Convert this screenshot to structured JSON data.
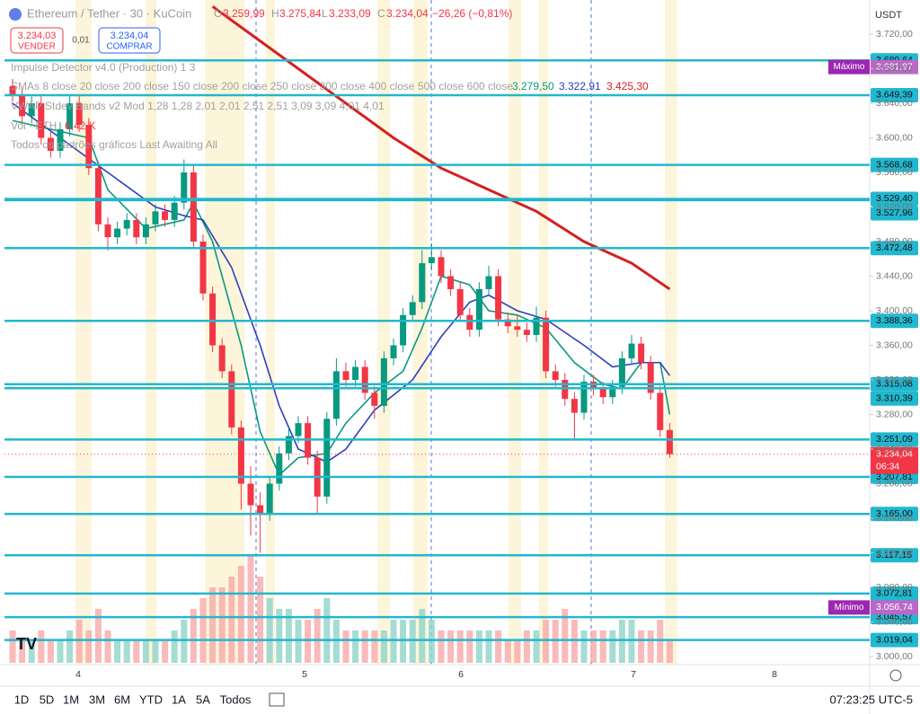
{
  "header": {
    "symbol": "Ethereum / Tether · 30 · KuCoin",
    "o_label": "O",
    "o": "3.259,99",
    "h_label": "H",
    "h": "3.275,84",
    "l_label": "L",
    "l": "3.233,09",
    "c_label": "C",
    "c": "3.234,04",
    "change": "−26,26 (−0,81%)"
  },
  "trade": {
    "sell_price": "3.234,03",
    "sell": "VENDER",
    "spread": "0,01",
    "buy_price": "3.234,04",
    "buy": "COMPRAR"
  },
  "indicators": {
    "impulse": "Impulse Detector v4.0 (Production) 1 3",
    "smas": "SMAs 8 close 20 close 200 close 150 close 200 close 250 close 300 close 400 close 500 close 600 close",
    "sma_values": [
      "3.279,50",
      "3.322,91",
      "3.425,30"
    ],
    "vwap": "VWAP Stdev Bands v2 Mod 1,28 1,28 2,01 2,01 2,51 2,51 3,09 3,09 4,01 4,01",
    "vol": "Vol · ETH",
    "vol_value": "6,42 K",
    "patterns": "Todos os padrões gráficos Last Awaiting All"
  },
  "chart_data": {
    "type": "candlestick",
    "currency": "USDT",
    "up_color": "#089981",
    "down_color": "#f23645",
    "ylim": [
      3000,
      3720
    ],
    "yticks": [
      {
        "value": 3720,
        "label": "3.720,00"
      },
      {
        "value": 3680,
        "label": "3.680,00"
      },
      {
        "value": 3640,
        "label": "3.640,00"
      },
      {
        "value": 3600,
        "label": "3.600,00"
      },
      {
        "value": 3560,
        "label": "3.560,00"
      },
      {
        "value": 3520,
        "label": "3.520,00"
      },
      {
        "value": 3480,
        "label": "3.480,00"
      },
      {
        "value": 3440,
        "label": "3.440,00"
      },
      {
        "value": 3400,
        "label": "3.400,00"
      },
      {
        "value": 3360,
        "label": "3.360,00"
      },
      {
        "value": 3320,
        "label": "3.320,00"
      },
      {
        "value": 3280,
        "label": "3.280,00"
      },
      {
        "value": 3240,
        "label": "3.240,00"
      },
      {
        "value": 3200,
        "label": "3.200,00"
      },
      {
        "value": 3160,
        "label": "3.160,00"
      },
      {
        "value": 3120,
        "label": "3.120,00"
      },
      {
        "value": 3080,
        "label": "3.080,00"
      },
      {
        "value": 3040,
        "label": "3.040,00"
      },
      {
        "value": 3000,
        "label": "3.000,00"
      }
    ],
    "xticks": [
      "4",
      "5",
      "6",
      "7",
      "8"
    ],
    "candles": [
      [
        3660,
        3668,
        3642,
        3650
      ],
      [
        3650,
        3658,
        3617,
        3625
      ],
      [
        3625,
        3648,
        3617,
        3640
      ],
      [
        3640,
        3648,
        3592,
        3600
      ],
      [
        3600,
        3608,
        3577,
        3585
      ],
      [
        3585,
        3618,
        3577,
        3610
      ],
      [
        3610,
        3650,
        3602,
        3640
      ],
      [
        3640,
        3648,
        3607,
        3615
      ],
      [
        3615,
        3623,
        3557,
        3565
      ],
      [
        3565,
        3573,
        3492,
        3500
      ],
      [
        3500,
        3508,
        3470,
        3485
      ],
      [
        3485,
        3503,
        3477,
        3495
      ],
      [
        3495,
        3513,
        3487,
        3505
      ],
      [
        3505,
        3513,
        3477,
        3485
      ],
      [
        3485,
        3508,
        3477,
        3500
      ],
      [
        3500,
        3523,
        3492,
        3515
      ],
      [
        3515,
        3523,
        3497,
        3505
      ],
      [
        3505,
        3533,
        3497,
        3525
      ],
      [
        3525,
        3575,
        3517,
        3560
      ],
      [
        3560,
        3568,
        3472,
        3480
      ],
      [
        3480,
        3488,
        3412,
        3420
      ],
      [
        3420,
        3428,
        3352,
        3360
      ],
      [
        3360,
        3368,
        3322,
        3330
      ],
      [
        3330,
        3338,
        3257,
        3265
      ],
      [
        3265,
        3273,
        3170,
        3200
      ],
      [
        3200,
        3220,
        3140,
        3175
      ],
      [
        3175,
        3190,
        3120,
        3165
      ],
      [
        3165,
        3208,
        3157,
        3200
      ],
      [
        3200,
        3243,
        3192,
        3235
      ],
      [
        3235,
        3263,
        3227,
        3255
      ],
      [
        3255,
        3278,
        3247,
        3270
      ],
      [
        3270,
        3278,
        3222,
        3230
      ],
      [
        3230,
        3238,
        3165,
        3185
      ],
      [
        3185,
        3283,
        3177,
        3275
      ],
      [
        3275,
        3345,
        3267,
        3330
      ],
      [
        3330,
        3340,
        3312,
        3320
      ],
      [
        3320,
        3343,
        3312,
        3335
      ],
      [
        3335,
        3343,
        3297,
        3305
      ],
      [
        3305,
        3313,
        3275,
        3290
      ],
      [
        3290,
        3353,
        3282,
        3345
      ],
      [
        3345,
        3368,
        3337,
        3360
      ],
      [
        3360,
        3403,
        3352,
        3395
      ],
      [
        3395,
        3418,
        3387,
        3410
      ],
      [
        3410,
        3470,
        3402,
        3455
      ],
      [
        3455,
        3478,
        3447,
        3462
      ],
      [
        3462,
        3470,
        3432,
        3440
      ],
      [
        3440,
        3448,
        3417,
        3425
      ],
      [
        3425,
        3433,
        3387,
        3395
      ],
      [
        3395,
        3403,
        3370,
        3378
      ],
      [
        3378,
        3433,
        3370,
        3425
      ],
      [
        3425,
        3452,
        3417,
        3440
      ],
      [
        3440,
        3448,
        3382,
        3390
      ],
      [
        3390,
        3398,
        3374,
        3382
      ],
      [
        3382,
        3395,
        3370,
        3378
      ],
      [
        3378,
        3386,
        3364,
        3372
      ],
      [
        3372,
        3405,
        3364,
        3392
      ],
      [
        3392,
        3400,
        3322,
        3330
      ],
      [
        3330,
        3338,
        3312,
        3320
      ],
      [
        3320,
        3328,
        3290,
        3298
      ],
      [
        3298,
        3306,
        3250,
        3282
      ],
      [
        3282,
        3326,
        3274,
        3318
      ],
      [
        3318,
        3326,
        3302,
        3310
      ],
      [
        3310,
        3318,
        3292,
        3300
      ],
      [
        3300,
        3320,
        3292,
        3312
      ],
      [
        3312,
        3353,
        3304,
        3345
      ],
      [
        3345,
        3372,
        3337,
        3362
      ],
      [
        3362,
        3370,
        3332,
        3340
      ],
      [
        3340,
        3348,
        3297,
        3305
      ],
      [
        3305,
        3313,
        3254,
        3262
      ],
      [
        3262,
        3270,
        3230,
        3234.04
      ]
    ],
    "volume_color_up": "#8fd3c8",
    "volume_color_down": "#f7a9a7",
    "volumes": [
      3,
      2,
      2,
      3,
      2,
      2,
      3,
      4,
      3,
      5,
      3,
      2,
      2,
      2,
      2,
      2,
      2,
      3,
      4,
      5,
      6,
      7,
      7,
      8,
      9,
      10,
      8,
      6,
      5,
      5,
      4,
      4,
      5,
      6,
      4,
      3,
      3,
      3,
      3,
      3,
      4,
      4,
      4,
      5,
      4,
      3,
      3,
      3,
      3,
      3,
      3,
      3,
      2,
      2,
      3,
      3,
      4,
      4,
      5,
      4,
      3,
      3,
      3,
      3,
      4,
      4,
      3,
      3,
      4,
      2
    ],
    "moving_averages": [
      {
        "color": "#089981",
        "x": [
          0,
          8,
          10,
          14,
          18,
          19,
          21,
          24,
          26,
          28,
          30,
          33,
          35,
          38,
          41,
          43,
          45,
          48,
          50,
          53,
          56,
          59,
          62,
          64,
          66,
          68,
          69
        ],
        "values": [
          3620,
          3600,
          3540,
          3495,
          3505,
          3525,
          3480,
          3360,
          3260,
          3210,
          3230,
          3235,
          3270,
          3305,
          3330,
          3380,
          3440,
          3430,
          3400,
          3395,
          3380,
          3340,
          3315,
          3310,
          3340,
          3340,
          3280
        ]
      },
      {
        "color": "#2d3fbf",
        "x": [
          0,
          10,
          15,
          18,
          20,
          23,
          26,
          28,
          30,
          33,
          35,
          38,
          42,
          45,
          48,
          50,
          53,
          56,
          60,
          63,
          66,
          68,
          69
        ],
        "values": [
          3640,
          3560,
          3520,
          3510,
          3505,
          3450,
          3360,
          3290,
          3240,
          3225,
          3240,
          3285,
          3320,
          3370,
          3410,
          3418,
          3400,
          3390,
          3360,
          3335,
          3340,
          3340,
          3325
        ]
      },
      {
        "color": "#d42020",
        "x": [
          21,
          25,
          30,
          35,
          40,
          45,
          50,
          55,
          60,
          65,
          69
        ],
        "values": [
          3752,
          3720,
          3680,
          3640,
          3600,
          3565,
          3540,
          3515,
          3480,
          3455,
          3425
        ]
      }
    ],
    "line_color": "#22b8cf",
    "price_lines": [
      {
        "value": 3689.64,
        "label": "3.689,64"
      },
      {
        "value": 3649.39,
        "label": "3.649,39"
      },
      {
        "value": 3568.68,
        "label": "3.568,68"
      },
      {
        "value": 3529.4,
        "label": "3.529,40"
      },
      {
        "value": 3527.96,
        "label": "3.527,96"
      },
      {
        "value": 3472.48,
        "label": "3.472,48"
      },
      {
        "value": 3388.36,
        "label": "3.388,36"
      },
      {
        "value": 3315.08,
        "label": "3.315,08"
      },
      {
        "value": 3310.39,
        "label": "3.310,39"
      },
      {
        "value": 3251.09,
        "label": "3.251,09"
      },
      {
        "value": 3207.81,
        "label": "3.207,81"
      },
      {
        "value": 3165.0,
        "label": "3.165,00"
      },
      {
        "value": 3117.15,
        "label": "3.117,15"
      },
      {
        "value": 3072.81,
        "label": "3.072,81"
      },
      {
        "value": 3045.57,
        "label": "3.045,57"
      },
      {
        "value": 3019.04,
        "label": "3.019,04"
      }
    ],
    "maximum": {
      "label": "Máximo",
      "value": 3681.97,
      "value_label": "3.681,97"
    },
    "minimum": {
      "label": "Mínimo",
      "value": 3056.74,
      "value_label": "3.056,74"
    },
    "current": {
      "value": 3234.04,
      "label": "3.234,04",
      "countdown": "06:34"
    }
  },
  "toolbar": {
    "ranges": [
      "1D",
      "5D",
      "1M",
      "3M",
      "6M",
      "YTD",
      "1A",
      "5A",
      "Todos"
    ],
    "time": "07:23:25 UTC-5"
  }
}
